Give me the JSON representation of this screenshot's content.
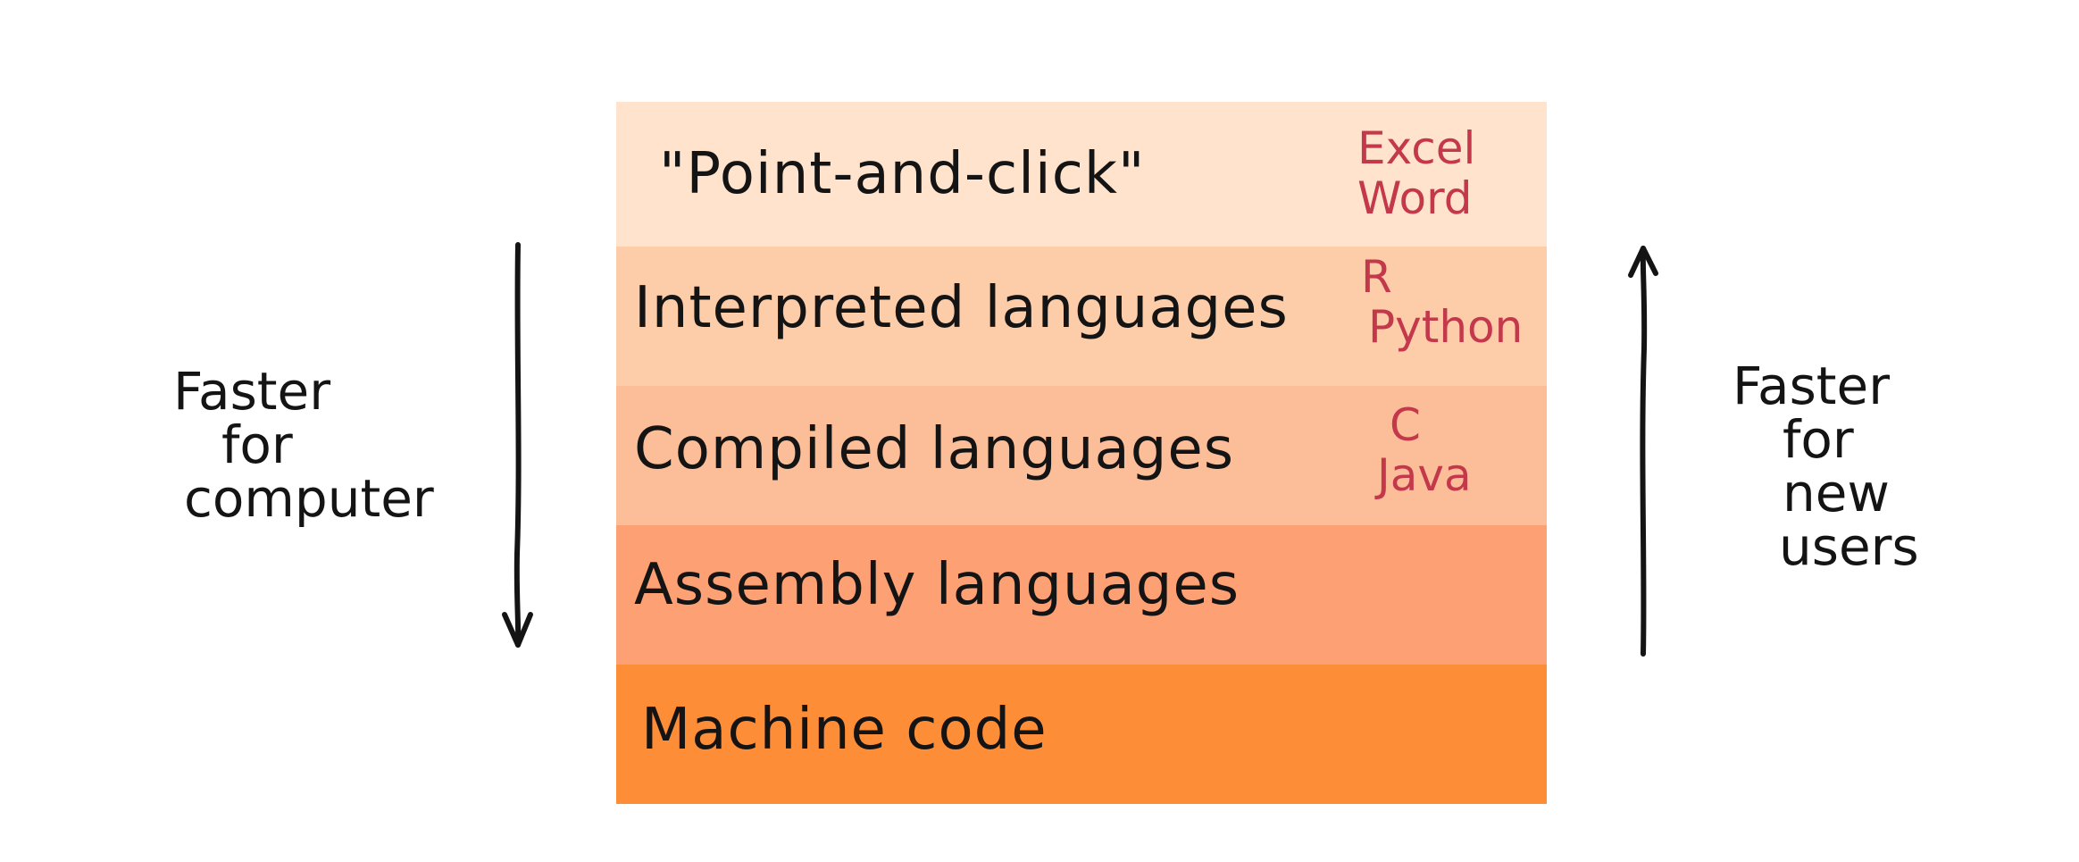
{
  "diagram": {
    "layers": [
      {
        "label": "\"Point-and-click\"",
        "color": "#ffe3cc",
        "examples": [
          "Excel",
          "Word"
        ]
      },
      {
        "label": "Interpreted languages",
        "color": "#fdcdaa",
        "examples": [
          "R",
          "Python"
        ]
      },
      {
        "label": "Compiled languages",
        "color": "#fcbe98",
        "examples": [
          "C",
          "Java"
        ]
      },
      {
        "label": "Assembly languages",
        "color": "#fda074",
        "examples": []
      },
      {
        "label": "Machine code",
        "color": "#fe8d38",
        "examples": []
      }
    ],
    "left_label": [
      "Faster",
      "for",
      "computer"
    ],
    "right_label": [
      "Faster",
      "for",
      "new",
      "users"
    ],
    "left_arrow": "down",
    "right_arrow": "up",
    "example_color": "#c4384b",
    "text_color": "#141414"
  }
}
